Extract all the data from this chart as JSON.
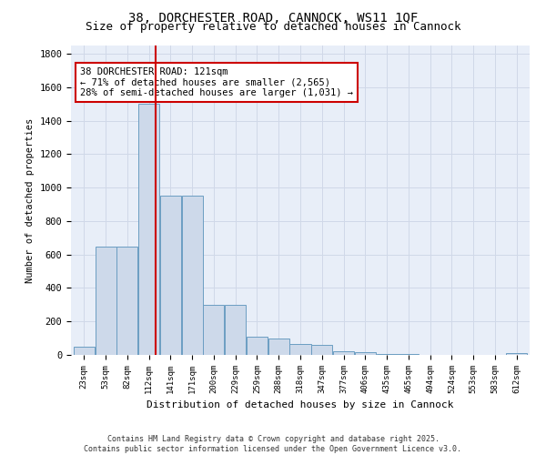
{
  "title": "38, DORCHESTER ROAD, CANNOCK, WS11 1QF",
  "subtitle": "Size of property relative to detached houses in Cannock",
  "xlabel": "Distribution of detached houses by size in Cannock",
  "ylabel": "Number of detached properties",
  "bar_labels": [
    "23sqm",
    "53sqm",
    "82sqm",
    "112sqm",
    "141sqm",
    "171sqm",
    "200sqm",
    "229sqm",
    "259sqm",
    "288sqm",
    "318sqm",
    "347sqm",
    "377sqm",
    "406sqm",
    "435sqm",
    "465sqm",
    "494sqm",
    "524sqm",
    "553sqm",
    "583sqm",
    "612sqm"
  ],
  "bar_values": [
    50,
    650,
    650,
    1500,
    950,
    950,
    300,
    300,
    110,
    100,
    65,
    60,
    20,
    18,
    4,
    4,
    2,
    2,
    1,
    1,
    12
  ],
  "bar_color": "#cdd9ea",
  "bar_edgecolor": "#6b9dc2",
  "vline_color": "#cc0000",
  "annotation_text": "38 DORCHESTER ROAD: 121sqm\n← 71% of detached houses are smaller (2,565)\n28% of semi-detached houses are larger (1,031) →",
  "annotation_box_facecolor": "white",
  "annotation_box_edgecolor": "#cc0000",
  "ylim": [
    0,
    1850
  ],
  "yticks": [
    0,
    200,
    400,
    600,
    800,
    1000,
    1200,
    1400,
    1600,
    1800
  ],
  "grid_color": "#d0d8e8",
  "bg_color": "#e8eef8",
  "footnote": "Contains HM Land Registry data © Crown copyright and database right 2025.\nContains public sector information licensed under the Open Government Licence v3.0.",
  "title_fontsize": 10,
  "subtitle_fontsize": 9
}
